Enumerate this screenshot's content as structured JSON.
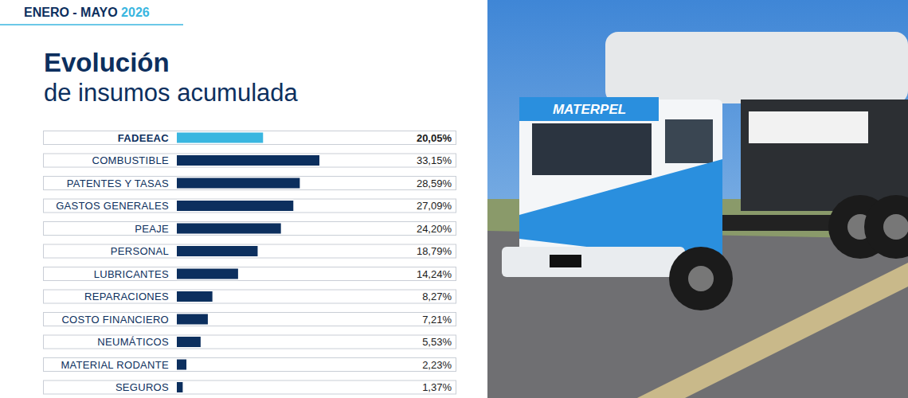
{
  "header": {
    "period": "ENERO - MAYO",
    "year": "2026"
  },
  "photo": {
    "brand": "MATERPEL"
  },
  "chart_data": {
    "type": "bar",
    "orientation": "horizontal",
    "title": "Evolución",
    "subtitle": "de insumos acumulada",
    "categories": [
      "FADEEAC",
      "COMBUSTIBLE",
      "PATENTES Y TASAS",
      "GASTOS GENERALES",
      "PEAJE",
      "PERSONAL",
      "LUBRICANTES",
      "REPARACIONES",
      "COSTO FINANCIERO",
      "NEUMÁTICOS",
      "MATERIAL RODANTE",
      "SEGUROS"
    ],
    "values": [
      20.05,
      33.15,
      28.59,
      27.09,
      24.2,
      18.79,
      14.24,
      8.27,
      7.21,
      5.53,
      2.23,
      1.37
    ],
    "value_labels": [
      "20,05%",
      "33,15%",
      "28,59%",
      "27,09%",
      "24,20%",
      "18,79%",
      "14,24%",
      "8,27%",
      "7,21%",
      "5,53%",
      "2,23%",
      "1,37%"
    ],
    "colors": [
      "#3ab6e0",
      "#0c2f5e",
      "#0c2f5e",
      "#0c2f5e",
      "#0c2f5e",
      "#0c2f5e",
      "#0c2f5e",
      "#0c2f5e",
      "#0c2f5e",
      "#0c2f5e",
      "#0c2f5e",
      "#0c2f5e"
    ],
    "xlim": [
      0,
      60
    ],
    "data_labels": true,
    "tick_labels": "y",
    "grid": false
  }
}
